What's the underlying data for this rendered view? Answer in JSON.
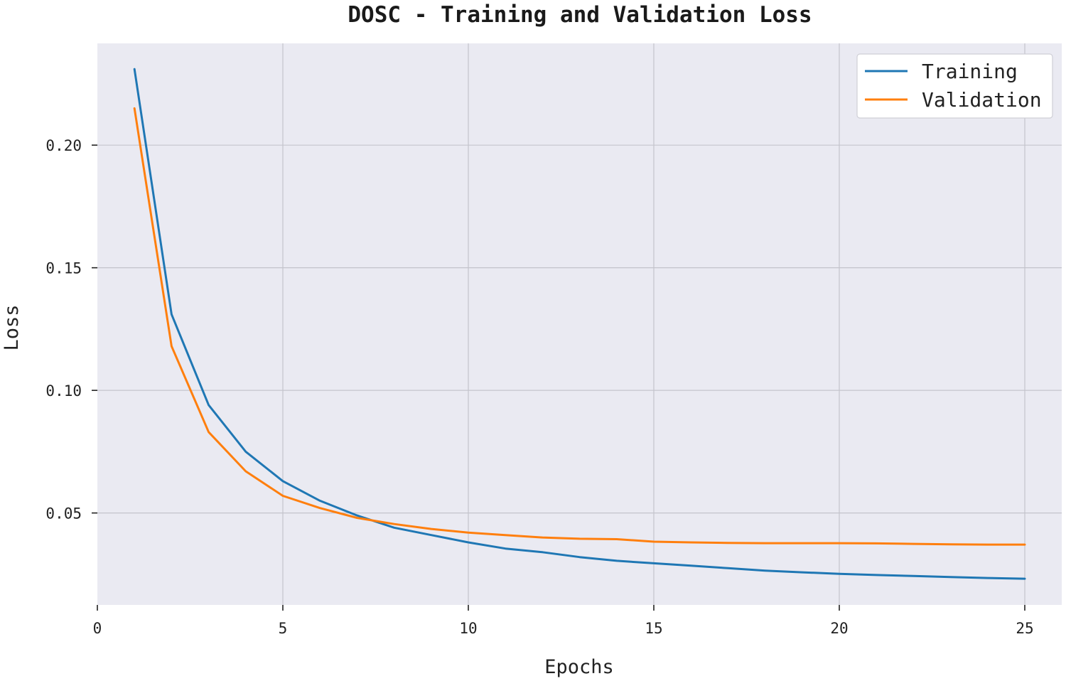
{
  "chart_data": {
    "type": "line",
    "title": "DOSC - Training and Validation Loss",
    "xlabel": "Epochs",
    "ylabel": "Loss",
    "xlim": [
      0,
      25
    ],
    "ylim": [
      0.0125,
      0.2415
    ],
    "xticks": [
      0,
      5,
      10,
      15,
      20,
      25
    ],
    "xtick_labels": [
      "0",
      "5",
      "10",
      "15",
      "20",
      "25"
    ],
    "yticks": [
      0.05,
      0.1,
      0.15,
      0.2
    ],
    "ytick_labels": [
      "0.05",
      "0.10",
      "0.15",
      "0.20"
    ],
    "grid": true,
    "legend_position": "top-right",
    "background_color": "#eaeaf2",
    "x": [
      1,
      2,
      3,
      4,
      5,
      6,
      7,
      8,
      9,
      10,
      11,
      12,
      13,
      14,
      15,
      16,
      17,
      18,
      19,
      20,
      21,
      22,
      23,
      24,
      25
    ],
    "series": [
      {
        "name": "Training",
        "color": "#1f77b4",
        "values": [
          0.231,
          0.131,
          0.094,
          0.075,
          0.063,
          0.055,
          0.049,
          0.044,
          0.041,
          0.038,
          0.0355,
          0.034,
          0.032,
          0.0305,
          0.0295,
          0.0285,
          0.0275,
          0.0265,
          0.0258,
          0.0252,
          0.0247,
          0.0243,
          0.0239,
          0.0235,
          0.0232
        ]
      },
      {
        "name": "Validation",
        "color": "#ff7f0e",
        "values": [
          0.215,
          0.118,
          0.083,
          0.067,
          0.057,
          0.052,
          0.048,
          0.0455,
          0.0435,
          0.042,
          0.041,
          0.04,
          0.0395,
          0.0393,
          0.0383,
          0.038,
          0.0378,
          0.0377,
          0.0377,
          0.0377,
          0.0376,
          0.0374,
          0.0372,
          0.0371,
          0.0371
        ]
      }
    ]
  }
}
